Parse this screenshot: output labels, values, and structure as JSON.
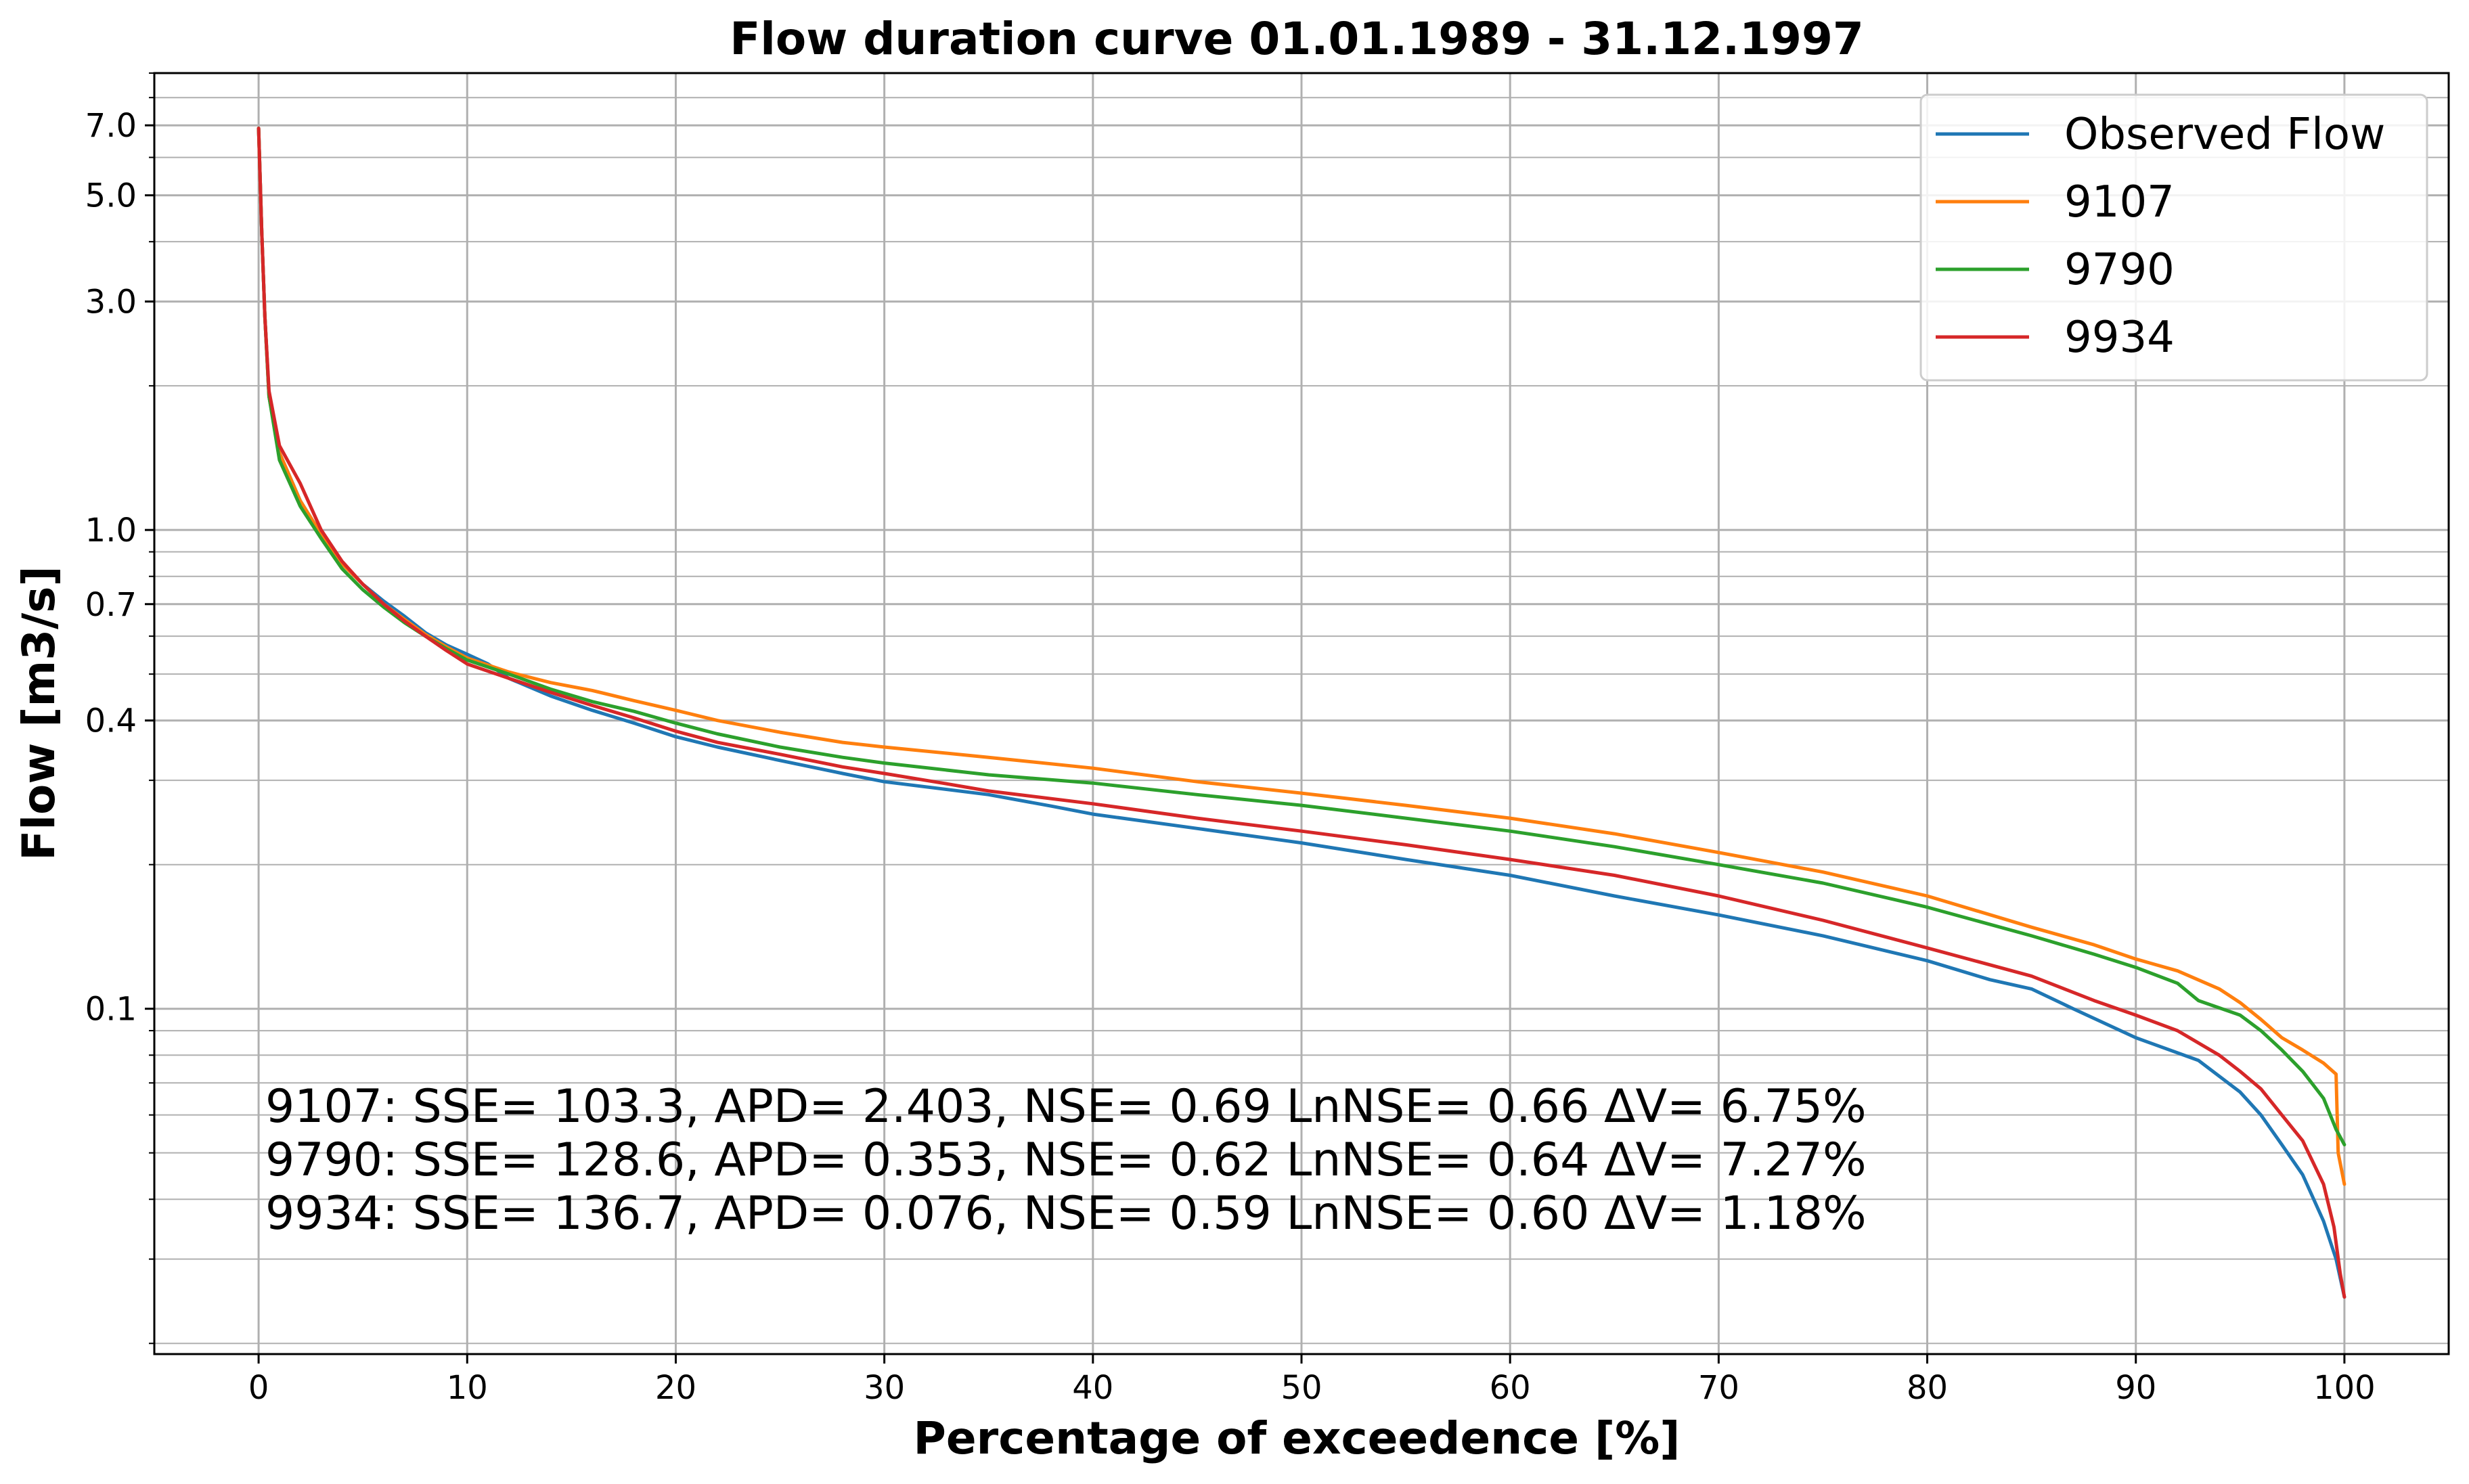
{
  "chart_data": {
    "type": "line",
    "title": "Flow duration curve 01.01.1989 - 31.12.1997",
    "xlabel": "Percentage of exceedence [%]",
    "ylabel": "Flow [m3/s]",
    "xscale": "linear",
    "yscale": "log",
    "xlim": [
      -5,
      105
    ],
    "ylim": [
      0.019,
      9.0
    ],
    "grid": true,
    "legend_position": "top-right",
    "x_ticks": [
      0,
      10,
      20,
      30,
      40,
      50,
      60,
      70,
      80,
      90,
      100
    ],
    "x_tick_labels": [
      "0",
      "10",
      "20",
      "30",
      "40",
      "50",
      "60",
      "70",
      "80",
      "90",
      "100"
    ],
    "y_ticks": [
      0.1,
      0.4,
      0.7,
      1.0,
      3.0,
      5.0,
      7.0
    ],
    "y_tick_labels": [
      "0.1",
      "0.4",
      "0.7",
      "1.0",
      "3.0",
      "5.0",
      "7.0"
    ],
    "y_minor_gridlines": [
      0.02,
      0.03,
      0.04,
      0.05,
      0.06,
      0.07,
      0.08,
      0.09,
      0.2,
      0.3,
      0.5,
      0.6,
      0.8,
      0.9,
      2,
      4,
      6,
      8,
      9
    ],
    "series": [
      {
        "name": "Observed Flow",
        "color": "#1f77b4",
        "points": [
          [
            0,
            6.9
          ],
          [
            0.15,
            4.2
          ],
          [
            0.3,
            2.8
          ],
          [
            0.5,
            1.9
          ],
          [
            1,
            1.45
          ],
          [
            2,
            1.15
          ],
          [
            3,
            0.98
          ],
          [
            4,
            0.85
          ],
          [
            5,
            0.77
          ],
          [
            6,
            0.71
          ],
          [
            7,
            0.66
          ],
          [
            8,
            0.61
          ],
          [
            9,
            0.575
          ],
          [
            10,
            0.55
          ],
          [
            11,
            0.525
          ],
          [
            12,
            0.49
          ],
          [
            14,
            0.45
          ],
          [
            16,
            0.42
          ],
          [
            18,
            0.395
          ],
          [
            20,
            0.37
          ],
          [
            22,
            0.352
          ],
          [
            25,
            0.33
          ],
          [
            28,
            0.31
          ],
          [
            30,
            0.298
          ],
          [
            35,
            0.28
          ],
          [
            38,
            0.265
          ],
          [
            40,
            0.255
          ],
          [
            45,
            0.238
          ],
          [
            50,
            0.222
          ],
          [
            55,
            0.205
          ],
          [
            60,
            0.19
          ],
          [
            65,
            0.172
          ],
          [
            70,
            0.157
          ],
          [
            75,
            0.142
          ],
          [
            80,
            0.126
          ],
          [
            83,
            0.115
          ],
          [
            85,
            0.11
          ],
          [
            87,
            0.1
          ],
          [
            90,
            0.087
          ],
          [
            93,
            0.078
          ],
          [
            95,
            0.067
          ],
          [
            96,
            0.06
          ],
          [
            97,
            0.052
          ],
          [
            98,
            0.045
          ],
          [
            99,
            0.036
          ],
          [
            99.6,
            0.03
          ],
          [
            100,
            0.025
          ]
        ]
      },
      {
        "name": "9107",
        "color": "#ff7f0e",
        "points": [
          [
            0,
            6.9
          ],
          [
            0.15,
            4.2
          ],
          [
            0.3,
            2.8
          ],
          [
            0.5,
            1.9
          ],
          [
            1,
            1.45
          ],
          [
            2,
            1.15
          ],
          [
            3,
            0.98
          ],
          [
            4,
            0.85
          ],
          [
            5,
            0.77
          ],
          [
            6,
            0.7
          ],
          [
            7,
            0.65
          ],
          [
            8,
            0.605
          ],
          [
            9,
            0.57
          ],
          [
            10,
            0.54
          ],
          [
            12,
            0.505
          ],
          [
            14,
            0.48
          ],
          [
            16,
            0.462
          ],
          [
            18,
            0.44
          ],
          [
            20,
            0.42
          ],
          [
            22,
            0.4
          ],
          [
            25,
            0.378
          ],
          [
            28,
            0.36
          ],
          [
            30,
            0.352
          ],
          [
            35,
            0.335
          ],
          [
            40,
            0.318
          ],
          [
            45,
            0.298
          ],
          [
            50,
            0.282
          ],
          [
            55,
            0.266
          ],
          [
            60,
            0.25
          ],
          [
            65,
            0.232
          ],
          [
            70,
            0.212
          ],
          [
            75,
            0.193
          ],
          [
            80,
            0.172
          ],
          [
            85,
            0.148
          ],
          [
            88,
            0.136
          ],
          [
            90,
            0.127
          ],
          [
            92,
            0.12
          ],
          [
            94,
            0.11
          ],
          [
            95,
            0.103
          ],
          [
            96,
            0.095
          ],
          [
            97,
            0.087
          ],
          [
            98,
            0.082
          ],
          [
            99,
            0.077
          ],
          [
            99.6,
            0.073
          ],
          [
            99.7,
            0.05
          ],
          [
            100,
            0.043
          ]
        ]
      },
      {
        "name": "9790",
        "color": "#2ca02c",
        "points": [
          [
            0,
            6.9
          ],
          [
            0.15,
            4.2
          ],
          [
            0.3,
            2.8
          ],
          [
            0.5,
            1.9
          ],
          [
            1,
            1.4
          ],
          [
            2,
            1.12
          ],
          [
            3,
            0.96
          ],
          [
            4,
            0.83
          ],
          [
            5,
            0.75
          ],
          [
            6,
            0.69
          ],
          [
            7,
            0.64
          ],
          [
            8,
            0.6
          ],
          [
            9,
            0.565
          ],
          [
            10,
            0.535
          ],
          [
            12,
            0.5
          ],
          [
            14,
            0.465
          ],
          [
            16,
            0.438
          ],
          [
            18,
            0.418
          ],
          [
            20,
            0.395
          ],
          [
            22,
            0.375
          ],
          [
            25,
            0.352
          ],
          [
            28,
            0.335
          ],
          [
            30,
            0.326
          ],
          [
            35,
            0.308
          ],
          [
            40,
            0.296
          ],
          [
            45,
            0.28
          ],
          [
            50,
            0.266
          ],
          [
            55,
            0.25
          ],
          [
            60,
            0.235
          ],
          [
            65,
            0.218
          ],
          [
            70,
            0.2
          ],
          [
            75,
            0.183
          ],
          [
            80,
            0.163
          ],
          [
            85,
            0.142
          ],
          [
            88,
            0.13
          ],
          [
            90,
            0.122
          ],
          [
            92,
            0.113
          ],
          [
            93,
            0.104
          ],
          [
            95,
            0.097
          ],
          [
            96,
            0.09
          ],
          [
            97,
            0.082
          ],
          [
            98,
            0.074
          ],
          [
            99,
            0.065
          ],
          [
            99.6,
            0.056
          ],
          [
            100,
            0.052
          ]
        ]
      },
      {
        "name": "9934",
        "color": "#d62728",
        "points": [
          [
            0,
            6.9
          ],
          [
            0.15,
            4.2
          ],
          [
            0.3,
            2.8
          ],
          [
            0.5,
            1.95
          ],
          [
            1,
            1.5
          ],
          [
            2,
            1.25
          ],
          [
            3,
            1.0
          ],
          [
            4,
            0.86
          ],
          [
            5,
            0.77
          ],
          [
            6,
            0.7
          ],
          [
            7,
            0.645
          ],
          [
            8,
            0.6
          ],
          [
            9,
            0.56
          ],
          [
            10,
            0.525
          ],
          [
            12,
            0.49
          ],
          [
            14,
            0.458
          ],
          [
            16,
            0.43
          ],
          [
            18,
            0.405
          ],
          [
            20,
            0.38
          ],
          [
            22,
            0.36
          ],
          [
            25,
            0.34
          ],
          [
            28,
            0.32
          ],
          [
            30,
            0.31
          ],
          [
            33,
            0.295
          ],
          [
            35,
            0.285
          ],
          [
            40,
            0.268
          ],
          [
            45,
            0.25
          ],
          [
            50,
            0.235
          ],
          [
            55,
            0.22
          ],
          [
            60,
            0.205
          ],
          [
            65,
            0.19
          ],
          [
            70,
            0.172
          ],
          [
            75,
            0.153
          ],
          [
            80,
            0.134
          ],
          [
            85,
            0.117
          ],
          [
            88,
            0.104
          ],
          [
            90,
            0.097
          ],
          [
            92,
            0.09
          ],
          [
            94,
            0.08
          ],
          [
            95,
            0.074
          ],
          [
            96,
            0.068
          ],
          [
            97,
            0.06
          ],
          [
            98,
            0.053
          ],
          [
            99,
            0.043
          ],
          [
            99.5,
            0.035
          ],
          [
            99.8,
            0.028
          ],
          [
            100,
            0.025
          ]
        ]
      }
    ],
    "annotations": [
      "9107: SSE= 103.3, APD= 2.403, NSE= 0.69 LnNSE= 0.66 ΔV= 6.75%",
      "9790: SSE= 128.6, APD= 0.353, NSE= 0.62 LnNSE= 0.64 ΔV= 7.27%",
      "9934: SSE= 136.7, APD= 0.076, NSE= 0.59 LnNSE= 0.60 ΔV= 1.18%"
    ]
  }
}
